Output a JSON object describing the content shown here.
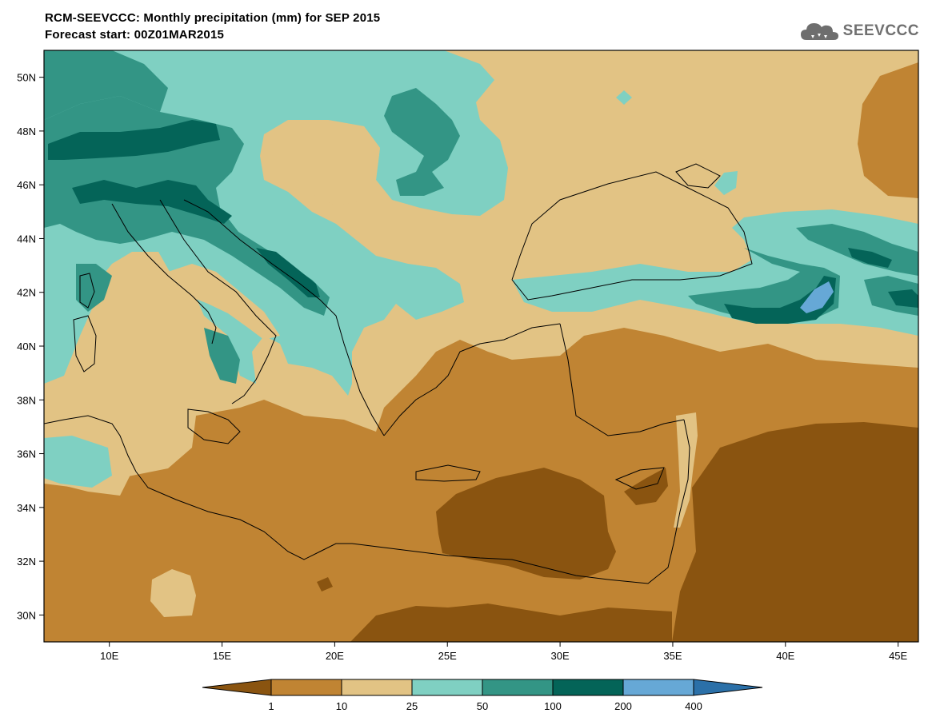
{
  "header": {
    "title_line1": "RCM-SEEVCCC: Monthly precipitation (mm) for SEP 2015",
    "title_line2": "Forecast start: 00Z01MAR2015",
    "logo_text": "SEEVCCC"
  },
  "axes": {
    "lat_ticks": [
      {
        "value": 50,
        "label": "50N"
      },
      {
        "value": 48,
        "label": "48N"
      },
      {
        "value": 46,
        "label": "46N"
      },
      {
        "value": 44,
        "label": "44N"
      },
      {
        "value": 42,
        "label": "42N"
      },
      {
        "value": 40,
        "label": "40N"
      },
      {
        "value": 38,
        "label": "38N"
      },
      {
        "value": 36,
        "label": "36N"
      },
      {
        "value": 34,
        "label": "34N"
      },
      {
        "value": 32,
        "label": "32N"
      },
      {
        "value": 30,
        "label": "30N"
      }
    ],
    "lon_ticks": [
      {
        "value": 10,
        "label": "10E"
      },
      {
        "value": 15,
        "label": "15E"
      },
      {
        "value": 20,
        "label": "20E"
      },
      {
        "value": 25,
        "label": "25E"
      },
      {
        "value": 30,
        "label": "30E"
      },
      {
        "value": 35,
        "label": "35E"
      },
      {
        "value": 40,
        "label": "40E"
      },
      {
        "value": 45,
        "label": "45E"
      }
    ]
  },
  "legend": {
    "thresholds": [
      "1",
      "10",
      "25",
      "50",
      "100",
      "200",
      "400"
    ],
    "colors": [
      "#8a5410",
      "#c08433",
      "#e2c384",
      "#7fd0c2",
      "#339585",
      "#046458",
      "#66a8d6",
      "#2b70a8"
    ]
  },
  "map_colors": {
    "lt1": "#8a5410",
    "r1_10": "#c08433",
    "r10_25": "#e2c384",
    "r25_50": "#7fd0c2",
    "r50_100": "#339585",
    "r100_200": "#046458",
    "r200_400": "#66a8d6"
  }
}
